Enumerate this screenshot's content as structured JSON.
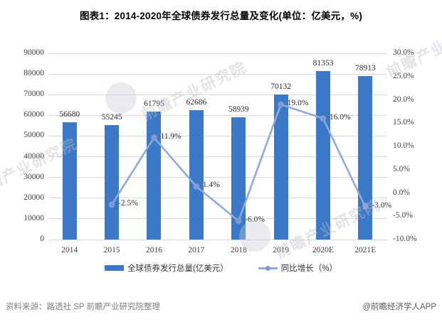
{
  "title": "图表1：2014-2020年全球债券发行总量及变化(单位：亿美元，%)",
  "chart_data": {
    "type": "bar+line",
    "categories": [
      "2014",
      "2015",
      "2016",
      "2017",
      "2018",
      "2019",
      "2020E",
      "2021E"
    ],
    "series": [
      {
        "name": "全球债券发行总量(亿美元）",
        "type": "bar",
        "axis": "left",
        "values": [
          56680,
          55245,
          61795,
          62686,
          58939,
          70132,
          81353,
          78913
        ],
        "color": "#3c78c8"
      },
      {
        "name": "同比增长（%）",
        "type": "line",
        "axis": "right",
        "values": [
          null,
          -2.5,
          11.9,
          1.4,
          -6.0,
          19.0,
          16.0,
          -3.0
        ],
        "point_labels": [
          "",
          "-2.5%",
          "11.9%",
          "1.4%",
          "-6.0%",
          "19.0%",
          "16.0%",
          "-3.0%"
        ],
        "color": "#8ea9db",
        "marker_color": "#7f9bd4"
      }
    ],
    "left_axis": {
      "min": 0,
      "max": 90000,
      "step": 10000,
      "ticks": [
        "90000",
        "80000",
        "70000",
        "60000",
        "50000",
        "40000",
        "30000",
        "20000",
        "10000",
        "0"
      ]
    },
    "right_axis": {
      "min": -10,
      "max": 30,
      "step": 5,
      "ticks": [
        "30.0%",
        "25.0%",
        "20.0%",
        "15.0%",
        "10.0%",
        "5.0%",
        "0.0%",
        "-5.0%",
        "-10.0%"
      ]
    },
    "grid": true,
    "grid_color": "#d9d9d9",
    "axis_text_color": "#404040",
    "legend_position": "bottom"
  },
  "legend": [
    {
      "label": "全球债券发行总量(亿美元）"
    },
    {
      "label": "同比增长（%）"
    }
  ],
  "footer": {
    "source": "资料来源：路透社 SP 前瞻产业研究院整理",
    "credit": "@前瞻经济学人APP"
  },
  "watermark": {
    "text": "前瞻产业研究院"
  }
}
